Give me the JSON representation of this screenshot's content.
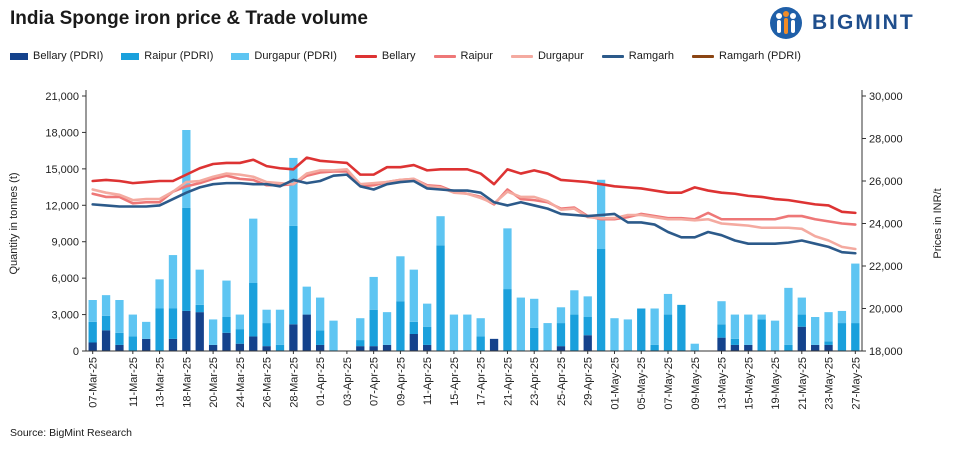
{
  "header": {
    "title": "India Sponge iron price & Trade volume",
    "logo_text": "BIGMINT"
  },
  "source": "Source: BigMint Research",
  "chart_data": {
    "type": "bar+line",
    "title": "India Sponge iron price & Trade volume",
    "ylabel": "Quantity in tonnes (t)",
    "y2label": "Prices in INR/t",
    "ylim": [
      0,
      21000
    ],
    "y2lim": [
      18000,
      30000
    ],
    "yticks": [
      0,
      3000,
      6000,
      9000,
      12000,
      15000,
      18000,
      21000
    ],
    "ytick_labels": [
      "0",
      "3,000",
      "6,000",
      "9,000",
      "12,000",
      "15,000",
      "18,000",
      "21,000"
    ],
    "y2ticks": [
      18000,
      20000,
      22000,
      24000,
      26000,
      28000,
      30000
    ],
    "y2tick_labels": [
      "18,000",
      "20,000",
      "22,000",
      "24,000",
      "26,000",
      "28,000",
      "30,000"
    ],
    "legend_position": "top",
    "x": [
      "07-Mar-25",
      "08-Mar-25",
      "10-Mar-25",
      "11-Mar-25",
      "12-Mar-25",
      "13-Mar-25",
      "17-Mar-25",
      "18-Mar-25",
      "19-Mar-25",
      "20-Mar-25",
      "21-Mar-25",
      "24-Mar-25",
      "25-Mar-25",
      "26-Mar-25",
      "27-Mar-25",
      "28-Mar-25",
      "29-Mar-25",
      "01-Apr-25",
      "02-Apr-25",
      "03-Apr-25",
      "04-Apr-25",
      "07-Apr-25",
      "08-Apr-25",
      "09-Apr-25",
      "10-Apr-25",
      "11-Apr-25",
      "12-Apr-25",
      "15-Apr-25",
      "16-Apr-25",
      "17-Apr-25",
      "19-Apr-25",
      "21-Apr-25",
      "22-Apr-25",
      "23-Apr-25",
      "24-Apr-25",
      "25-Apr-25",
      "26-Apr-25",
      "29-Apr-25",
      "30-Apr-25",
      "01-May-25",
      "02-May-25",
      "05-May-25",
      "06-May-25",
      "07-May-25",
      "08-May-25",
      "09-May-25",
      "12-May-25",
      "13-May-25",
      "14-May-25",
      "15-May-25",
      "16-May-25",
      "19-May-25",
      "20-May-25",
      "21-May-25",
      "22-May-25",
      "23-May-25",
      "26-May-25",
      "27-May-25"
    ],
    "x_tick_labels": [
      "07-Mar-25",
      "11-Mar-25",
      "13-Mar-25",
      "18-Mar-25",
      "20-Mar-25",
      "24-Mar-25",
      "26-Mar-25",
      "28-Mar-25",
      "01-Apr-25",
      "03-Apr-25",
      "07-Apr-25",
      "09-Apr-25",
      "11-Apr-25",
      "15-Apr-25",
      "17-Apr-25",
      "21-Apr-25",
      "23-Apr-25",
      "25-Apr-25",
      "29-Apr-25",
      "01-May-25",
      "05-May-25",
      "07-May-25",
      "09-May-25",
      "13-May-25",
      "15-May-25",
      "19-May-25",
      "21-May-25",
      "23-May-25",
      "27-May-25"
    ],
    "bar_series": [
      {
        "name": "Bellary (PDRI)",
        "color": "#14428c",
        "values": [
          700,
          1700,
          500,
          0,
          1000,
          0,
          1000,
          3300,
          3200,
          500,
          1500,
          600,
          1200,
          400,
          0,
          2200,
          3000,
          500,
          0,
          0,
          400,
          400,
          500,
          0,
          1400,
          500,
          0,
          0,
          0,
          0,
          1000,
          0,
          0,
          0,
          0,
          400,
          0,
          1300,
          0,
          0,
          0,
          0,
          0,
          0,
          0,
          0,
          0,
          1100,
          500,
          500,
          0,
          0,
          0,
          2000,
          500,
          500,
          0,
          0
        ]
      },
      {
        "name": "Raipur (PDRI)",
        "color": "#1aa0dc",
        "values": [
          1700,
          1200,
          1000,
          1200,
          0,
          3500,
          2500,
          8500,
          600,
          0,
          1300,
          1200,
          4400,
          1900,
          500,
          8100,
          0,
          1200,
          0,
          0,
          500,
          3000,
          0,
          4100,
          1000,
          1500,
          8700,
          0,
          0,
          1200,
          0,
          5100,
          0,
          1900,
          0,
          1900,
          3000,
          1500,
          8400,
          0,
          0,
          3500,
          500,
          3000,
          3800,
          0,
          0,
          1100,
          500,
          0,
          2600,
          0,
          500,
          1000,
          0,
          300,
          2300,
          2300
        ]
      },
      {
        "name": "Durgapur (PDRI)",
        "color": "#5ec5f2",
        "values": [
          1800,
          1700,
          2700,
          1800,
          1400,
          2400,
          4400,
          6400,
          2900,
          2100,
          3000,
          1200,
          5300,
          1100,
          2900,
          5600,
          2300,
          2700,
          2500,
          0,
          1800,
          2700,
          2700,
          3700,
          4300,
          1900,
          2400,
          3000,
          3000,
          1500,
          0,
          5000,
          4400,
          2400,
          2300,
          1300,
          2000,
          1700,
          5700,
          2700,
          2600,
          0,
          3000,
          1700,
          0,
          600,
          0,
          1900,
          2000,
          2500,
          400,
          2500,
          4700,
          1400,
          2300,
          2400,
          1000,
          4900
        ]
      }
    ],
    "line_series": [
      {
        "name": "Bellary",
        "color": "#dd3333",
        "values": [
          26000,
          26050,
          26000,
          25900,
          25950,
          26000,
          26000,
          26300,
          26600,
          26800,
          26850,
          26850,
          27000,
          26700,
          26600,
          26550,
          27100,
          26950,
          26900,
          26850,
          26300,
          26300,
          26650,
          26650,
          26750,
          26500,
          26550,
          26550,
          26550,
          26350,
          25850,
          26550,
          26350,
          26500,
          26350,
          26050,
          26000,
          25950,
          25850,
          25750,
          25700,
          25650,
          25550,
          25450,
          25450,
          25700,
          25550,
          25450,
          25400,
          25300,
          25250,
          25150,
          25100,
          25000,
          24900,
          24850,
          24550,
          24500
        ]
      },
      {
        "name": "Raipur",
        "color": "#ee7777",
        "values": [
          25400,
          25250,
          25250,
          24950,
          25000,
          25000,
          25500,
          25750,
          25900,
          26100,
          26250,
          26100,
          26050,
          25800,
          25800,
          25850,
          26250,
          26400,
          26450,
          26450,
          25750,
          25800,
          25950,
          26050,
          26100,
          25800,
          25750,
          25500,
          25400,
          25250,
          24900,
          25600,
          25150,
          25100,
          25000,
          24700,
          24750,
          24350,
          24200,
          24200,
          24300,
          24450,
          24350,
          24250,
          24250,
          24200,
          24500,
          24200,
          24200,
          24200,
          24200,
          24200,
          24350,
          24350,
          24200,
          24100,
          24000,
          23950
        ]
      },
      {
        "name": "Durgapur",
        "color": "#f4aaa0",
        "values": [
          25600,
          25450,
          25350,
          25100,
          25150,
          25150,
          25500,
          25950,
          26000,
          26200,
          26350,
          26300,
          26200,
          25950,
          25900,
          25850,
          26350,
          26500,
          26500,
          26550,
          25850,
          25900,
          25950,
          26050,
          26100,
          25750,
          25700,
          25450,
          25400,
          25200,
          24950,
          25500,
          25250,
          25250,
          25050,
          24650,
          24700,
          24300,
          24250,
          24250,
          24400,
          24400,
          24300,
          24200,
          24200,
          24150,
          24200,
          24000,
          23950,
          23900,
          23800,
          23800,
          23800,
          23750,
          23400,
          23200,
          22900,
          22800
        ]
      },
      {
        "name": "Ramgarh",
        "color": "#2c5a8a",
        "values": [
          24900,
          24850,
          24800,
          24800,
          24800,
          24850,
          25150,
          25450,
          25700,
          25850,
          25900,
          25900,
          25850,
          25850,
          25750,
          26050,
          25900,
          26000,
          26250,
          26300,
          25750,
          25600,
          25850,
          25950,
          26000,
          25650,
          25600,
          25550,
          25550,
          25450,
          25000,
          24850,
          25000,
          24850,
          24700,
          24450,
          24400,
          24350,
          24400,
          24450,
          24050,
          24050,
          23950,
          23600,
          23350,
          23350,
          23600,
          23450,
          23200,
          23050,
          23050,
          23050,
          23100,
          23200,
          23050,
          22900,
          22650,
          22600
        ]
      },
      {
        "name": "Ramgarh (PDRI)",
        "color": "#8b4513",
        "values": []
      }
    ]
  }
}
